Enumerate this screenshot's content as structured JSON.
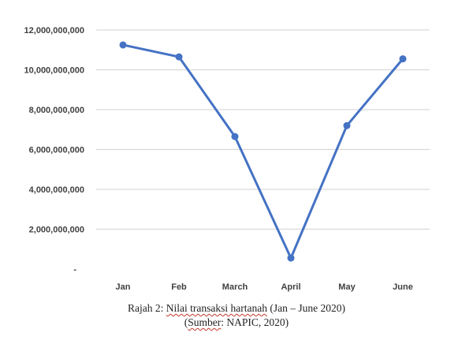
{
  "chart_data": {
    "type": "line",
    "categories": [
      "Jan",
      "Feb",
      "March",
      "April",
      "May",
      "June"
    ],
    "series": [
      {
        "values": [
          11250000000,
          10650000000,
          6650000000,
          550000000,
          7200000000,
          10550000000
        ]
      }
    ],
    "y_ticks": [
      "-",
      "2,000,000,000",
      "4,000,000,000",
      "6,000,000,000",
      "8,000,000,000",
      "10,000,000,000",
      "12,000,000,000"
    ],
    "ylim": [
      0,
      12000000000
    ],
    "grid": true,
    "legend": "none",
    "line_color": "#4472c4",
    "grid_color": "#d9d9d9"
  },
  "caption": {
    "line1_prefix": "Rajah 2: ",
    "line1_underlined": "Nilai transaksi hartanah",
    "line1_suffix": " (Jan – June 2020)",
    "line2_open": "(",
    "line2_underlined": "Sumber",
    "line2_rest": ": NAPIC, 2020)"
  }
}
